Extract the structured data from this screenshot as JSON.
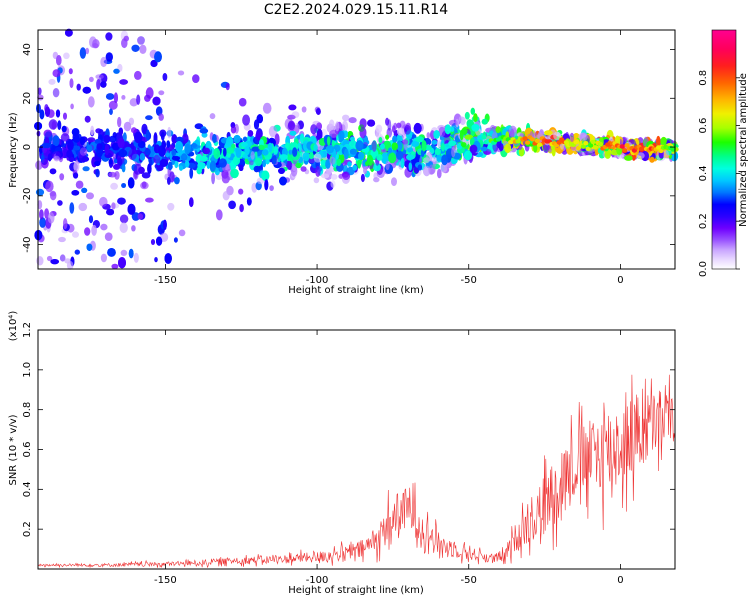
{
  "figure_title": "C2E2.2024.029.15.11.R14",
  "colors": {
    "snr_line": "#ee3333",
    "colormap": [
      "#ffffff",
      "#e8d8ff",
      "#c9a5ff",
      "#9a55ff",
      "#6f00ff",
      "#2b00ff",
      "#0000ff",
      "#0077ff",
      "#00c8ff",
      "#00ffe0",
      "#00ff8c",
      "#1bff00",
      "#a8ff00",
      "#f0f000",
      "#ffb400",
      "#ff6400",
      "#ff1e1e",
      "#ff005a",
      "#ff0090"
    ],
    "colormap_stops": [
      0.0,
      0.04,
      0.08,
      0.12,
      0.17,
      0.22,
      0.27,
      0.32,
      0.37,
      0.42,
      0.47,
      0.53,
      0.59,
      0.65,
      0.71,
      0.78,
      0.85,
      0.92,
      1.0
    ]
  },
  "chart_data": [
    {
      "type": "heatmap",
      "title": "",
      "xlabel": "Height of straight line (km)",
      "ylabel": "Frequency (Hz)",
      "xlim": [
        -192,
        18
      ],
      "ylim": [
        -50,
        48
      ],
      "xticks": [
        -150,
        -100,
        -50,
        0
      ],
      "xtick_labels": [
        "-150",
        "-100",
        "-50",
        "0"
      ],
      "yticks": [
        -40,
        -20,
        0,
        20,
        40
      ],
      "ytick_labels": [
        "-40",
        "-20",
        "0",
        "20",
        "40"
      ],
      "colorbar": {
        "label": "Normalized spectral amplitude",
        "range": [
          0.0,
          1.0
        ],
        "ticks": [
          0.0,
          0.2,
          0.4,
          0.6,
          0.8
        ],
        "tick_labels": [
          "0.0",
          "0.2",
          "0.4",
          "0.6",
          "0.8"
        ]
      },
      "ridge": {
        "height_km": [
          -192,
          -150,
          -140,
          -120,
          -100,
          -80,
          -70,
          -60,
          -50,
          -45,
          -40,
          -30,
          -20,
          -10,
          0,
          10,
          18
        ],
        "center_frequency_hz": [
          0,
          -2,
          -2,
          -3,
          -2,
          -2,
          -1,
          -2,
          5,
          3,
          3,
          3,
          2,
          1,
          0,
          -1,
          -1
        ],
        "peak_amplitude": [
          0.3,
          0.35,
          0.45,
          0.5,
          0.5,
          0.55,
          0.5,
          0.5,
          0.6,
          0.55,
          0.6,
          0.85,
          0.85,
          0.7,
          0.9,
          0.9,
          0.6
        ],
        "scatter_spread_hz": [
          48,
          48,
          35,
          22,
          18,
          15,
          12,
          10,
          10,
          6,
          4,
          3,
          3,
          3,
          3,
          3,
          3
        ]
      }
    },
    {
      "type": "line",
      "title": "",
      "xlabel": "Height of straight line (km)",
      "ylabel": "SNR (10 * v/v)",
      "y_multiplier": "(x10⁴)",
      "xlim": [
        -192,
        18
      ],
      "ylim": [
        0,
        1.2
      ],
      "xticks": [
        -150,
        -100,
        -50,
        0
      ],
      "xtick_labels": [
        "-150",
        "-100",
        "-50",
        "0"
      ],
      "yticks": [
        0.2,
        0.4,
        0.6,
        0.8,
        1.0,
        1.2
      ],
      "ytick_labels": [
        "0.2",
        "0.4",
        "0.6",
        "0.8",
        "1.0",
        "1.2"
      ],
      "series": [
        {
          "x": [
            -192,
            -170,
            -150,
            -140,
            -130,
            -120,
            -110,
            -100,
            -95,
            -90,
            -85,
            -80,
            -77,
            -75,
            -73,
            -70,
            -67,
            -65,
            -62,
            -60,
            -55,
            -50,
            -45,
            -40,
            -37,
            -35,
            -32,
            -30,
            -27,
            -25,
            -22,
            -20,
            -17,
            -15,
            -12,
            -10,
            -7,
            -5,
            -2,
            0,
            3,
            5,
            8,
            10,
            13,
            15,
            18
          ],
          "y": [
            0.02,
            0.02,
            0.025,
            0.03,
            0.04,
            0.045,
            0.05,
            0.06,
            0.07,
            0.08,
            0.1,
            0.15,
            0.22,
            0.25,
            0.27,
            0.3,
            0.25,
            0.2,
            0.16,
            0.13,
            0.1,
            0.08,
            0.06,
            0.05,
            0.08,
            0.15,
            0.2,
            0.25,
            0.28,
            0.32,
            0.38,
            0.45,
            0.5,
            0.52,
            0.55,
            0.55,
            0.58,
            0.6,
            0.6,
            0.62,
            0.65,
            0.68,
            0.7,
            0.72,
            0.74,
            0.76,
            0.75
          ],
          "spread": [
            0.01,
            0.015,
            0.02,
            0.025,
            0.03,
            0.035,
            0.04,
            0.05,
            0.06,
            0.07,
            0.09,
            0.12,
            0.18,
            0.2,
            0.22,
            0.2,
            0.18,
            0.15,
            0.12,
            0.1,
            0.08,
            0.06,
            0.05,
            0.04,
            0.07,
            0.12,
            0.18,
            0.22,
            0.26,
            0.3,
            0.3,
            0.32,
            0.3,
            0.32,
            0.35,
            0.36,
            0.4,
            0.42,
            0.4,
            0.38,
            0.38,
            0.38,
            0.36,
            0.3,
            0.3,
            0.28,
            0.2
          ]
        }
      ]
    }
  ]
}
